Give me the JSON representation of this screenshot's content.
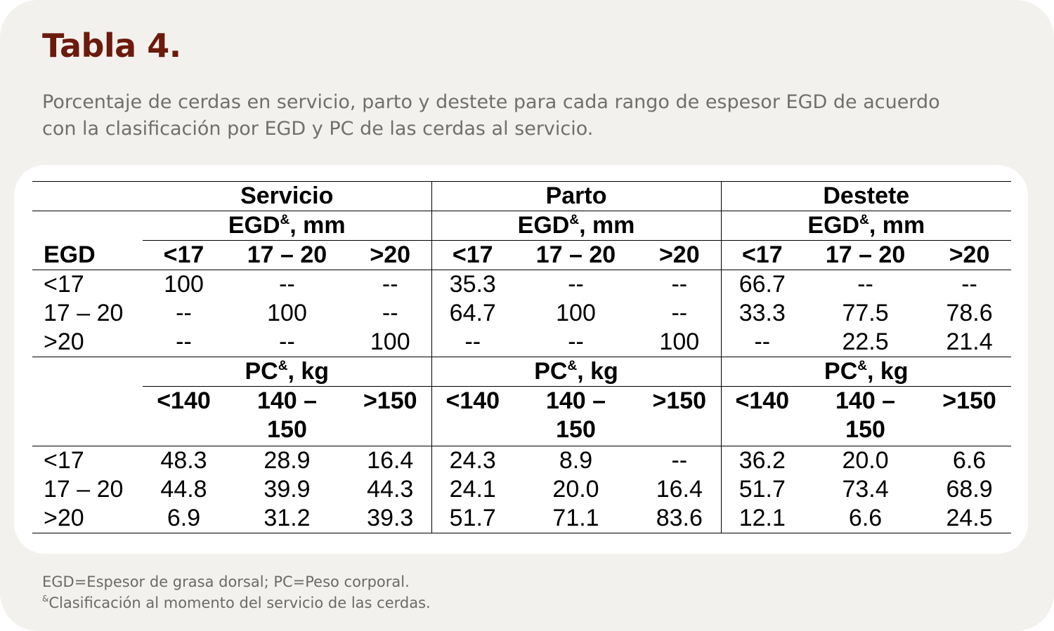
{
  "title": "Tabla 4.",
  "subtitle": "Porcentaje de cerdas en servicio, parto y destete para cada rango de espesor EGD de acuerdo con la clasificación por EGD y PC de las cerdas al servicio.",
  "table": {
    "groups": [
      "Servicio",
      "Parto",
      "Destete"
    ],
    "egd_unit": "EGD",
    "egd_unit_suffix": ", mm",
    "pc_unit": "PC",
    "pc_unit_suffix": ", kg",
    "superscript": "&",
    "row_header": "EGD",
    "egd_ranges": [
      "<17",
      "17 – 20",
      ">20"
    ],
    "pc_ranges": [
      "<140",
      "140 – 150",
      ">150"
    ],
    "egd_rows": [
      {
        "label": "<17",
        "values": [
          "100",
          "--",
          "--",
          "35.3",
          "--",
          "--",
          "66.7",
          "--",
          "--"
        ]
      },
      {
        "label": "17 – 20",
        "values": [
          "--",
          "100",
          "--",
          "64.7",
          "100",
          "--",
          "33.3",
          "77.5",
          "78.6"
        ]
      },
      {
        "label": ">20",
        "values": [
          "--",
          "--",
          "100",
          "--",
          "--",
          "100",
          "--",
          "22.5",
          "21.4"
        ]
      }
    ],
    "pc_rows": [
      {
        "label": "<17",
        "values": [
          "48.3",
          "28.9",
          "16.4",
          "24.3",
          "8.9",
          "--",
          "36.2",
          "20.0",
          "6.6"
        ]
      },
      {
        "label": "17 – 20",
        "values": [
          "44.8",
          "39.9",
          "44.3",
          "24.1",
          "20.0",
          "16.4",
          "51.7",
          "73.4",
          "68.9"
        ]
      },
      {
        "label": ">20",
        "values": [
          "6.9",
          "31.2",
          "39.3",
          "51.7",
          "71.1",
          "83.6",
          "12.1",
          "6.6",
          "24.5"
        ]
      }
    ]
  },
  "footnotes": {
    "line1": "EGD=Espesor de grasa dorsal; PC=Peso corporal.",
    "line2_mark": "&",
    "line2": "Clasificación al momento del servicio de las cerdas."
  }
}
